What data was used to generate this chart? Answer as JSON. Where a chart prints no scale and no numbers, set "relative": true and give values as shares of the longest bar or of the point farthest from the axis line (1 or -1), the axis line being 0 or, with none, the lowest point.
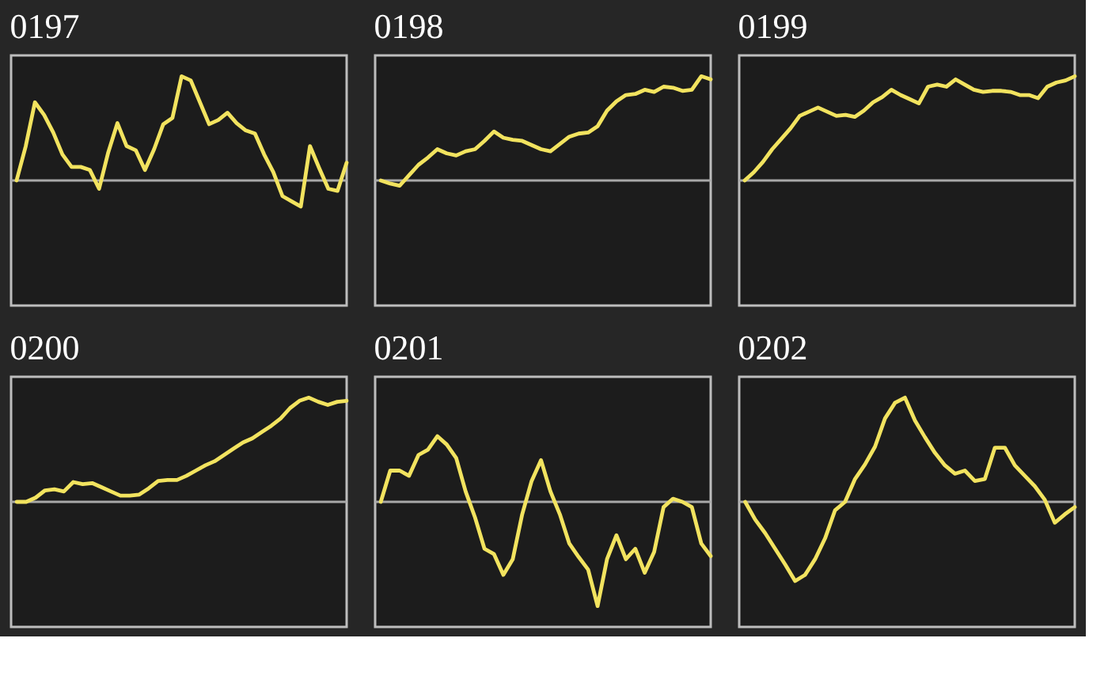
{
  "chart_data": [
    {
      "type": "line",
      "title": "0197",
      "relative": true,
      "tick_labels": false,
      "categories": [
        null,
        null,
        null,
        null,
        null,
        null,
        null,
        null,
        null,
        null,
        null,
        null,
        null,
        null,
        null,
        null,
        null,
        null,
        null,
        null,
        null,
        null,
        null,
        null,
        null,
        null,
        null,
        null,
        null,
        null,
        null,
        null,
        null,
        null,
        null,
        null,
        null
      ],
      "series": [
        {
          "color": "#f2e35f",
          "values": [
            0,
            0.33,
            0.75,
            0.63,
            0.46,
            0.25,
            0.13,
            0.13,
            0.1,
            -0.08,
            0.27,
            0.55,
            0.33,
            0.29,
            0.1,
            0.3,
            0.54,
            0.6,
            1,
            0.96,
            0.75,
            0.54,
            0.58,
            0.65,
            0.55,
            0.48,
            0.45,
            0.25,
            0.08,
            -0.15,
            -0.2,
            -0.25,
            0.33,
            0.12,
            -0.08,
            -0.1,
            0.17
          ]
        }
      ]
    },
    {
      "type": "line",
      "title": "0198",
      "relative": true,
      "tick_labels": false,
      "categories": [
        null,
        null,
        null,
        null,
        null,
        null,
        null,
        null,
        null,
        null,
        null,
        null,
        null,
        null,
        null,
        null,
        null,
        null,
        null,
        null,
        null,
        null,
        null,
        null,
        null,
        null,
        null,
        null,
        null,
        null,
        null,
        null,
        null,
        null,
        null,
        null
      ],
      "series": [
        {
          "color": "#f2e35f",
          "values": [
            0,
            -0.03,
            -0.05,
            0.05,
            0.15,
            0.22,
            0.3,
            0.26,
            0.24,
            0.28,
            0.3,
            0.38,
            0.47,
            0.41,
            0.39,
            0.38,
            0.34,
            0.3,
            0.28,
            0.35,
            0.42,
            0.45,
            0.46,
            0.52,
            0.67,
            0.76,
            0.82,
            0.83,
            0.87,
            0.85,
            0.9,
            0.89,
            0.86,
            0.87,
            1,
            0.97
          ]
        }
      ]
    },
    {
      "type": "line",
      "title": "0199",
      "relative": true,
      "tick_labels": false,
      "categories": [
        null,
        null,
        null,
        null,
        null,
        null,
        null,
        null,
        null,
        null,
        null,
        null,
        null,
        null,
        null,
        null,
        null,
        null,
        null,
        null,
        null,
        null,
        null,
        null,
        null,
        null,
        null,
        null,
        null,
        null,
        null,
        null,
        null,
        null,
        null,
        null,
        null
      ],
      "series": [
        {
          "color": "#f2e35f",
          "values": [
            0,
            0.08,
            0.18,
            0.3,
            0.4,
            0.5,
            0.62,
            0.66,
            0.7,
            0.66,
            0.62,
            0.63,
            0.61,
            0.67,
            0.75,
            0.8,
            0.87,
            0.82,
            0.78,
            0.74,
            0.9,
            0.92,
            0.9,
            0.97,
            0.92,
            0.87,
            0.85,
            0.86,
            0.86,
            0.85,
            0.82,
            0.82,
            0.79,
            0.9,
            0.94,
            0.96,
            1
          ]
        }
      ]
    },
    {
      "type": "line",
      "title": "0200",
      "relative": true,
      "tick_labels": false,
      "categories": [
        null,
        null,
        null,
        null,
        null,
        null,
        null,
        null,
        null,
        null,
        null,
        null,
        null,
        null,
        null,
        null,
        null,
        null,
        null,
        null,
        null,
        null,
        null,
        null,
        null,
        null,
        null,
        null,
        null,
        null,
        null,
        null,
        null,
        null,
        null,
        null
      ],
      "series": [
        {
          "color": "#f2e35f",
          "values": [
            0,
            0,
            0.04,
            0.11,
            0.12,
            0.1,
            0.19,
            0.17,
            0.18,
            0.14,
            0.1,
            0.06,
            0.06,
            0.07,
            0.13,
            0.2,
            0.21,
            0.21,
            0.25,
            0.3,
            0.35,
            0.39,
            0.45,
            0.51,
            0.57,
            0.61,
            0.67,
            0.73,
            0.8,
            0.9,
            0.97,
            1,
            0.96,
            0.93,
            0.96,
            0.97
          ]
        }
      ]
    },
    {
      "type": "line",
      "title": "0201",
      "relative": true,
      "tick_labels": false,
      "categories": [
        null,
        null,
        null,
        null,
        null,
        null,
        null,
        null,
        null,
        null,
        null,
        null,
        null,
        null,
        null,
        null,
        null,
        null,
        null,
        null,
        null,
        null,
        null,
        null,
        null,
        null,
        null,
        null,
        null,
        null,
        null,
        null,
        null,
        null,
        null,
        null
      ],
      "series": [
        {
          "color": "#f2e35f",
          "values": [
            0,
            0.3,
            0.3,
            0.25,
            0.45,
            0.5,
            0.63,
            0.55,
            0.42,
            0.1,
            -0.15,
            -0.45,
            -0.5,
            -0.7,
            -0.55,
            -0.12,
            0.2,
            0.4,
            0.1,
            -0.12,
            -0.4,
            -0.53,
            -0.65,
            -1,
            -0.55,
            -0.32,
            -0.55,
            -0.45,
            -0.68,
            -0.48,
            -0.05,
            0.03,
            0,
            -0.05,
            -0.4,
            -0.52
          ]
        }
      ]
    },
    {
      "type": "line",
      "title": "0202",
      "relative": true,
      "tick_labels": false,
      "categories": [
        null,
        null,
        null,
        null,
        null,
        null,
        null,
        null,
        null,
        null,
        null,
        null,
        null,
        null,
        null,
        null,
        null,
        null,
        null,
        null,
        null,
        null,
        null,
        null,
        null,
        null,
        null,
        null,
        null,
        null,
        null,
        null,
        null,
        null
      ],
      "series": [
        {
          "color": "#f2e35f",
          "values": [
            0,
            -0.17,
            -0.3,
            -0.45,
            -0.6,
            -0.76,
            -0.7,
            -0.55,
            -0.35,
            -0.08,
            0,
            0.22,
            0.36,
            0.53,
            0.8,
            0.95,
            1,
            0.78,
            0.62,
            0.47,
            0.35,
            0.27,
            0.3,
            0.2,
            0.22,
            0.52,
            0.52,
            0.35,
            0.25,
            0.15,
            0.02,
            -0.2,
            -0.12,
            -0.05
          ]
        }
      ]
    }
  ]
}
